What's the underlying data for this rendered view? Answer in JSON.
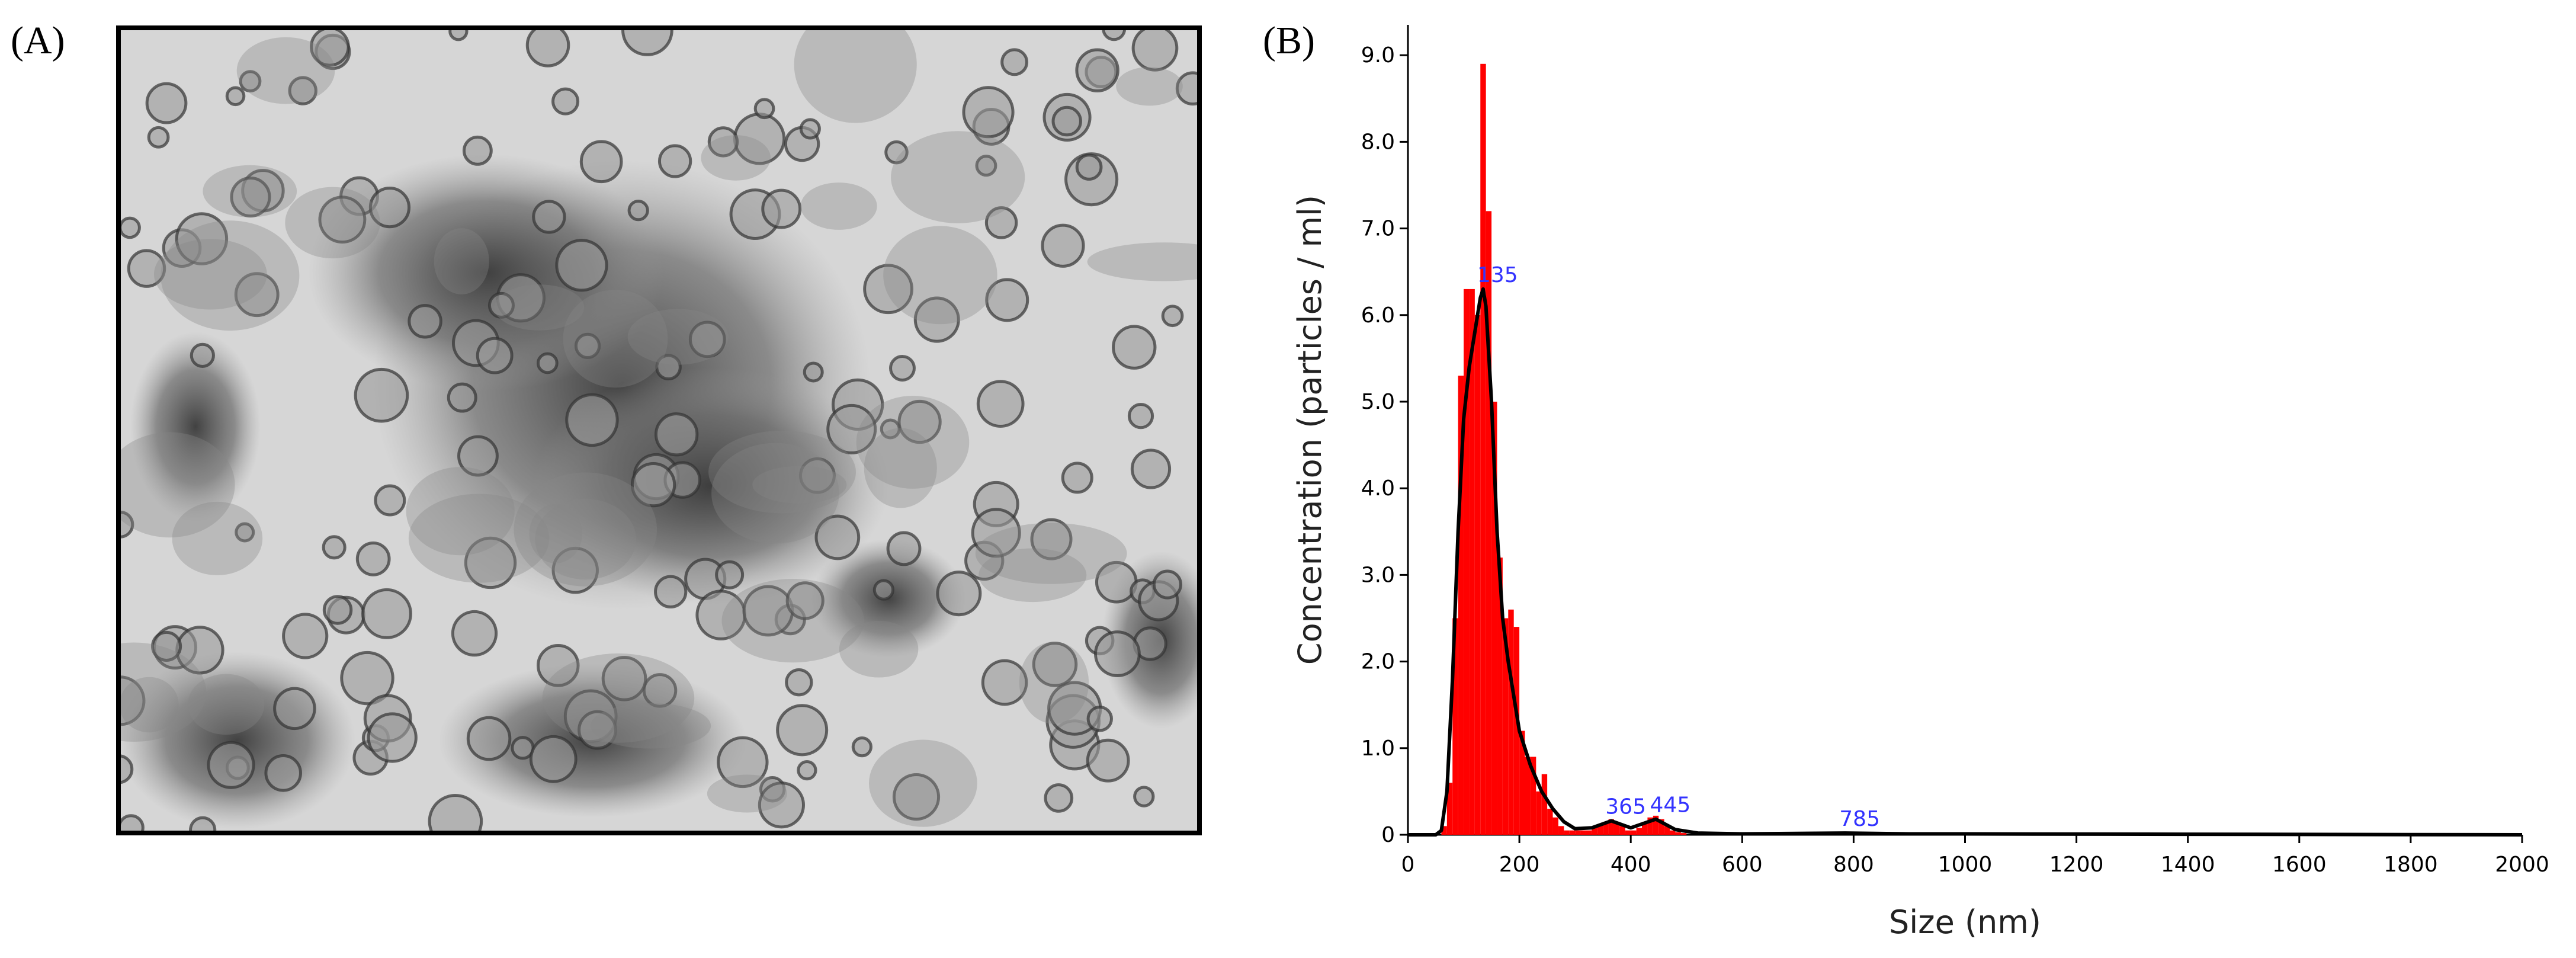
{
  "panel_labels": [
    "(A)",
    "(B)"
  ],
  "chart_data": {
    "type": "histogram",
    "x_label": "Size (nm)",
    "y_label": "Concentration (particles / ml)",
    "xlim": [
      0,
      2000
    ],
    "xticks": [
      0,
      200,
      400,
      600,
      800,
      1000,
      1200,
      1400,
      1600,
      1800,
      2000
    ],
    "ylim": [
      0,
      9.35
    ],
    "yticks": [
      0,
      {
        "value": 1,
        "label": "1.0"
      },
      {
        "value": 2,
        "label": "2.0"
      },
      {
        "value": 3,
        "label": "3.0"
      },
      {
        "value": 4,
        "label": "4.0"
      },
      {
        "value": 5,
        "label": "5.0"
      },
      {
        "value": 6,
        "label": "6.0"
      },
      {
        "value": 7,
        "label": "7.0"
      },
      {
        "value": 8,
        "label": "8.0"
      },
      {
        "value": 9,
        "label": "9.0"
      }
    ],
    "color": "#ff0000",
    "bins": [
      60,
      70,
      80,
      90,
      100,
      110,
      120,
      130,
      140,
      150,
      160,
      170,
      180,
      190,
      200,
      210,
      220,
      230,
      240,
      250,
      260,
      270,
      280,
      290,
      300,
      310,
      320,
      330,
      340,
      350,
      360,
      370,
      380,
      390,
      400,
      410,
      420,
      430,
      440,
      450,
      460,
      470,
      480,
      490,
      500
    ],
    "counts": [
      0.1,
      0.6,
      2.5,
      5.3,
      6.3,
      6.3,
      6.0,
      8.9,
      7.2,
      5.0,
      3.2,
      2.5,
      2.6,
      2.4,
      1.2,
      0.9,
      0.9,
      0.5,
      0.7,
      0.3,
      0.2,
      0.1,
      0.05,
      0.05,
      0.05,
      0.05,
      0.05,
      0.08,
      0.12,
      0.15,
      0.18,
      0.15,
      0.1,
      0.05,
      0.05,
      0.08,
      0.15,
      0.2,
      0.22,
      0.18,
      0.1,
      0.05,
      0.03,
      0.02
    ],
    "line": {
      "color": "#000000",
      "x": [
        0,
        50,
        60,
        70,
        80,
        90,
        100,
        110,
        120,
        130,
        135,
        140,
        150,
        160,
        170,
        180,
        190,
        200,
        220,
        240,
        260,
        280,
        300,
        330,
        365,
        400,
        445,
        480,
        520,
        600,
        785,
        900,
        1000,
        2000
      ],
      "values": [
        0,
        0,
        0.05,
        0.5,
        1.8,
        3.5,
        4.8,
        5.4,
        5.8,
        6.2,
        6.3,
        6.1,
        5.0,
        3.5,
        2.5,
        2.0,
        1.6,
        1.2,
        0.8,
        0.5,
        0.3,
        0.15,
        0.07,
        0.08,
        0.16,
        0.08,
        0.18,
        0.06,
        0.02,
        0.01,
        0.02,
        0.01,
        0.01,
        0
      ]
    },
    "annotation_color": "#3333ff",
    "annotations": [
      {
        "text": "135",
        "x": 135,
        "y": 6.3
      },
      {
        "text": "365",
        "x": 365,
        "y": 0.16
      },
      {
        "text": "445",
        "x": 445,
        "y": 0.18
      },
      {
        "text": "785",
        "x": 785,
        "y": 0.02
      }
    ]
  }
}
